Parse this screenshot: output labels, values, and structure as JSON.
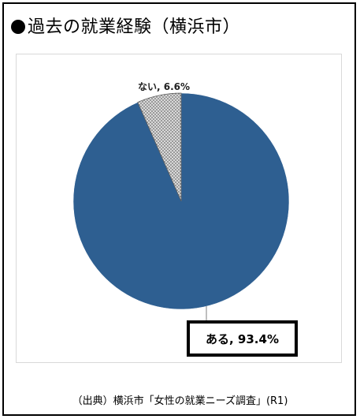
{
  "title": "過去の就業経験（横浜市）",
  "source": "（出典）横浜市「女性の就業ニーズ調査」(R1)",
  "chart_data": {
    "type": "pie",
    "title": "過去の就業経験（横浜市）",
    "slices": [
      {
        "label": "ある",
        "value": 93.4,
        "value_label": "93.4%",
        "color": "#2e5f91",
        "pattern": "solid"
      },
      {
        "label": "ない",
        "value": 6.6,
        "value_label": "6.6%",
        "color": "#bfbfbf",
        "pattern": "dotted"
      }
    ],
    "start_angle": "12 o'clock",
    "direction": "clockwise",
    "legend": "none"
  }
}
